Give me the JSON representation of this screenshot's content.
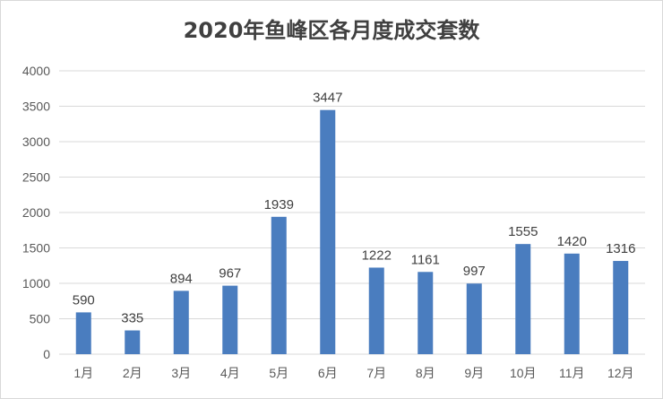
{
  "chart_data": {
    "type": "bar",
    "title": "2020年鱼峰区各月度成交套数",
    "categories": [
      "1月",
      "2月",
      "3月",
      "4月",
      "5月",
      "6月",
      "7月",
      "8月",
      "9月",
      "10月",
      "11月",
      "12月"
    ],
    "values": [
      590,
      335,
      894,
      967,
      1939,
      3447,
      1222,
      1161,
      997,
      1555,
      1420,
      1316
    ],
    "ylim": [
      0,
      4000
    ],
    "yticks": [
      0,
      500,
      1000,
      1500,
      2000,
      2500,
      3000,
      3500,
      4000
    ],
    "grid": true,
    "legend": "none",
    "bar_color": "#4a7dbf",
    "grid_color": "#d9d9d9"
  }
}
